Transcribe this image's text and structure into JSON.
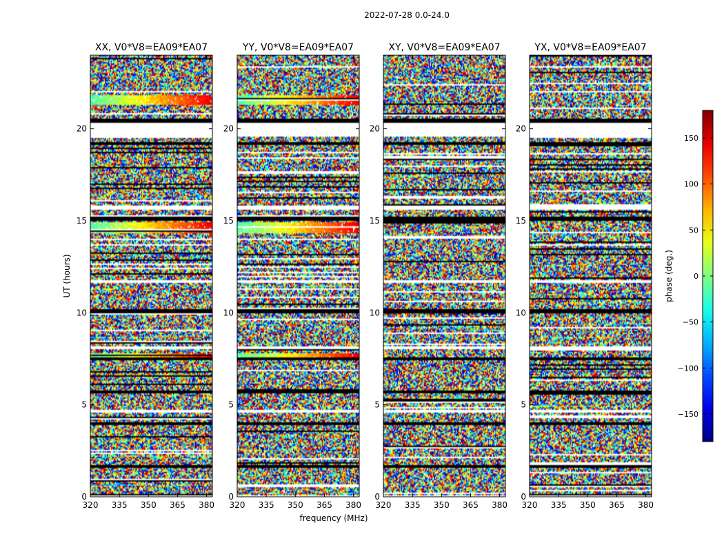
{
  "figure_title": "2022-07-28 0.0-24.0",
  "chart_data": {
    "type": "heatmap",
    "shared": {
      "xlabel": "frequency (MHz)",
      "ylabel": "UT (hours)",
      "xlim": [
        320,
        383
      ],
      "ylim": [
        0,
        24
      ],
      "xticks": [
        320,
        335,
        350,
        365,
        380
      ],
      "yticks": [
        0,
        5,
        10,
        15,
        20
      ]
    },
    "panels": [
      {
        "title": "XX, V0*V8=EA09*EA07",
        "correlation": "XX"
      },
      {
        "title": "YY, V0*V8=EA09*EA07",
        "correlation": "YY"
      },
      {
        "title": "XY, V0*V8=EA09*EA07",
        "correlation": "XY"
      },
      {
        "title": "YX, V0*V8=EA09*EA07",
        "correlation": "YX"
      }
    ],
    "flagged_ut_ranges": [
      [
        20.3,
        20.55
      ],
      [
        19.1,
        19.3
      ],
      [
        15.0,
        15.25
      ],
      [
        10.0,
        10.2
      ],
      [
        7.4,
        7.55
      ],
      [
        5.6,
        5.75
      ],
      [
        3.9,
        4.05
      ],
      [
        1.6,
        1.75
      ]
    ],
    "blank_ut_ranges": [
      [
        19.6,
        20.3
      ],
      [
        15.6,
        15.8
      ],
      [
        11.6,
        11.8
      ],
      [
        8.05,
        8.2
      ],
      [
        4.6,
        4.75
      ],
      [
        0.0,
        0.1
      ]
    ],
    "coherent_bands": [
      {
        "panel": "XX",
        "ut": [
          21.3,
          21.8
        ]
      },
      {
        "panel": "YY",
        "ut": [
          21.3,
          21.8
        ]
      },
      {
        "panel": "XX",
        "ut": [
          14.3,
          14.9
        ]
      },
      {
        "panel": "YY",
        "ut": [
          14.3,
          14.9
        ]
      },
      {
        "panel": "XX",
        "ut": [
          7.6,
          7.8
        ]
      },
      {
        "panel": "YY",
        "ut": [
          7.6,
          7.8
        ]
      }
    ],
    "colorbar": {
      "label": "phase (deg.)",
      "range": [
        -180,
        180
      ],
      "ticks": [
        -150,
        -100,
        -50,
        0,
        50,
        100,
        150
      ],
      "colormap": "jet"
    }
  }
}
